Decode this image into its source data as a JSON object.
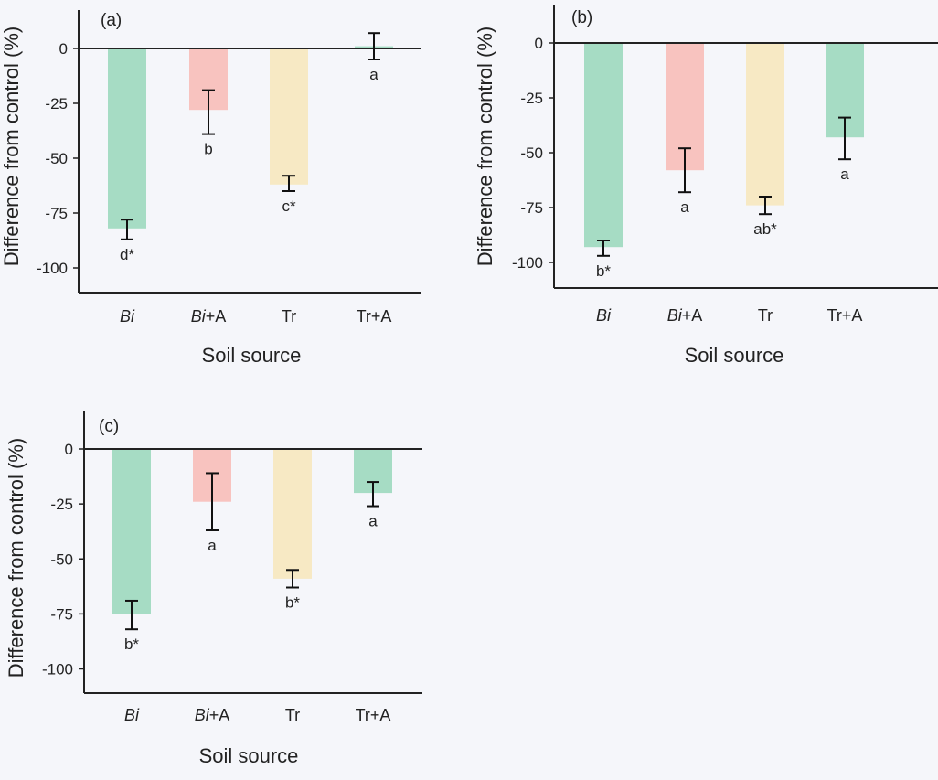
{
  "chart_data": [
    {
      "type": "bar",
      "panel": "(a)",
      "categories": [
        "Bi",
        "Bi+A",
        "Tr",
        "Tr+A"
      ],
      "values": [
        -82,
        -28,
        -62,
        1
      ],
      "error_low": [
        -87,
        -39,
        -65,
        -5
      ],
      "error_high": [
        -78,
        -19,
        -58,
        7
      ],
      "significance": [
        "d*",
        "b",
        "c*",
        "a"
      ],
      "xlabel": "Soil source",
      "ylabel": "Difference from control (%)",
      "yticks": [
        0,
        -25,
        -50,
        -75,
        -100
      ],
      "ylim": [
        -110,
        15
      ]
    },
    {
      "type": "bar",
      "panel": "(b)",
      "categories": [
        "Bi",
        "Bi+A",
        "Tr",
        "Tr+A"
      ],
      "values": [
        -93,
        -58,
        -74,
        -43
      ],
      "error_low": [
        -97,
        -68,
        -78,
        -53
      ],
      "error_high": [
        -90,
        -48,
        -70,
        -34
      ],
      "significance": [
        "b*",
        "a",
        "ab*",
        "a"
      ],
      "xlabel": "Soil source",
      "ylabel": "Difference from control (%)",
      "yticks": [
        0,
        -25,
        -50,
        -75,
        -100
      ],
      "ylim": [
        -113,
        15
      ]
    },
    {
      "type": "bar",
      "panel": "(c)",
      "categories": [
        "Bi",
        "Bi+A",
        "Tr",
        "Tr+A"
      ],
      "values": [
        -75,
        -24,
        -59,
        -20
      ],
      "error_low": [
        -82,
        -37,
        -63,
        -26
      ],
      "error_high": [
        -69,
        -11,
        -55,
        -15
      ],
      "significance": [
        "b*",
        "a",
        "b*",
        "a"
      ],
      "xlabel": "Soil source",
      "ylabel": "Difference from control (%)",
      "yticks": [
        0,
        -25,
        -50,
        -75,
        -100
      ],
      "ylim": [
        -110,
        20
      ]
    }
  ],
  "colors": {
    "Bi": "#a6dcc4",
    "Bi+A": "#f8c3bf",
    "Tr": "#f7e9c4",
    "Tr+A": "#a6dcc4",
    "axis": "#222222",
    "text": "#222222"
  }
}
